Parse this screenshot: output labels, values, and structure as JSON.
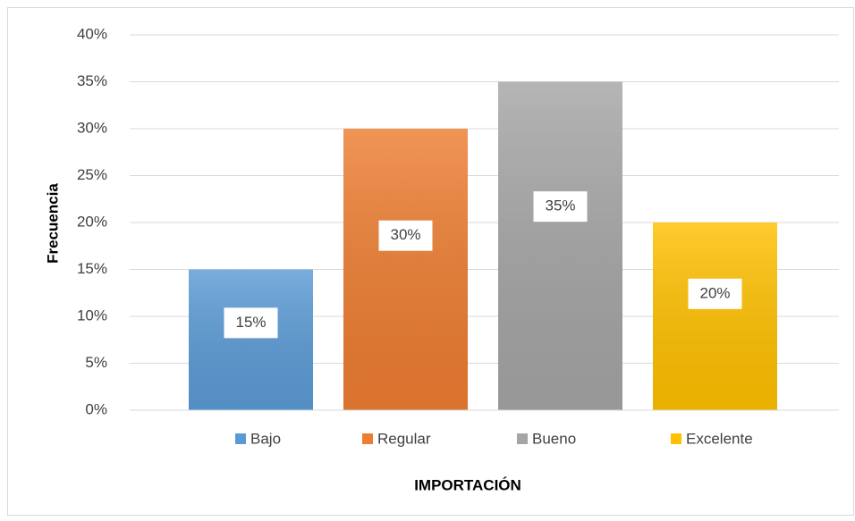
{
  "chart_data": {
    "type": "bar",
    "categories": [
      "Bajo",
      "Regular",
      "Bueno",
      "Excelente"
    ],
    "values": [
      15,
      30,
      35,
      20
    ],
    "value_labels": [
      "15%",
      "30%",
      "35%",
      "20%"
    ],
    "colors": [
      "#5b9bd5",
      "#ed7d31",
      "#a5a5a5",
      "#ffc000"
    ],
    "ylim": [
      0,
      40
    ],
    "yticks": [
      {
        "value": 0,
        "label": "0%"
      },
      {
        "value": 5,
        "label": "5%"
      },
      {
        "value": 10,
        "label": "10%"
      },
      {
        "value": 15,
        "label": "15%"
      },
      {
        "value": 20,
        "label": "20%"
      },
      {
        "value": 25,
        "label": "25%"
      },
      {
        "value": 30,
        "label": "30%"
      },
      {
        "value": 35,
        "label": "35%"
      },
      {
        "value": 40,
        "label": "40%"
      }
    ],
    "x_label": "IMPORTACIÓN",
    "y_label": "Frecuencia",
    "grid": true,
    "legend": "bottom"
  }
}
